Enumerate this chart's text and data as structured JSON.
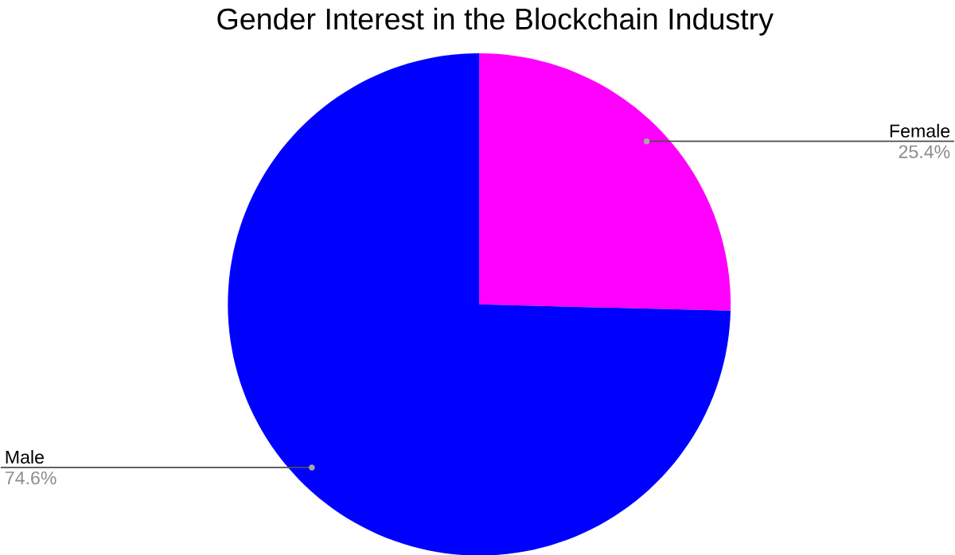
{
  "chart_data": {
    "type": "pie",
    "title": "Gender Interest in the Blockchain Industry",
    "categories": [
      "Female",
      "Male"
    ],
    "values": [
      25.4,
      74.6
    ],
    "colors": [
      "#ff00ff",
      "#0000ff"
    ],
    "value_labels": [
      "25.4%",
      "74.6%"
    ]
  }
}
